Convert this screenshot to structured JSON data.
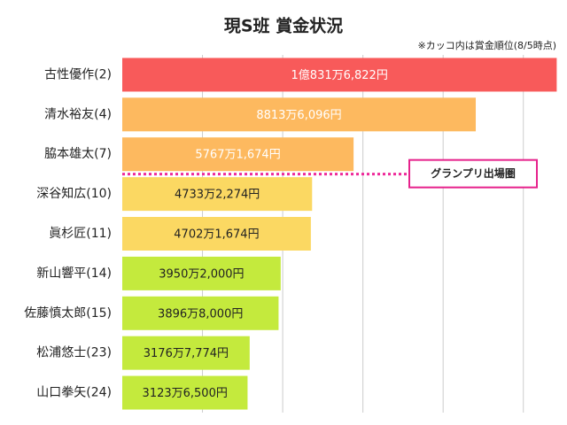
{
  "chart_data": {
    "type": "barh",
    "title": "現S班 賞金状況",
    "subtitle": "※カッコ内は賞金順位(8/5時点)",
    "categories": [
      "古性優作(2)",
      "清水裕友(4)",
      "脇本雄太(7)",
      "深谷知広(10)",
      "眞杉匠(11)",
      "新山響平(14)",
      "佐藤慎太郎(15)",
      "松浦悠士(23)",
      "山口拳矢(24)"
    ],
    "values": [
      108316822,
      88136096,
      57671674,
      47332274,
      47021674,
      39502000,
      38968000,
      31767774,
      31236500
    ],
    "value_labels": [
      "1億831万6,822円",
      "8813万6,096円",
      "5767万1,674円",
      "4733万2,274円",
      "4702万1,674円",
      "3950万2,000円",
      "3896万8,000円",
      "3176万7,774円",
      "3123万6,500円"
    ],
    "colors": [
      "#f85a5a",
      "#fdb95f",
      "#fdb95f",
      "#fbd862",
      "#fbd862",
      "#c4ea3d",
      "#c4ea3d",
      "#c4ea3d",
      "#c4ea3d"
    ],
    "label_colors": [
      "#ffffff",
      "#ffffff",
      "#ffffff",
      "#222222",
      "#222222",
      "#222222",
      "#222222",
      "#222222",
      "#222222"
    ],
    "xlim": [
      0,
      110000000
    ],
    "xticks": [
      20000000,
      40000000,
      60000000,
      80000000,
      100000000
    ],
    "grid": true,
    "annotation": "グランプリ出場圏"
  }
}
